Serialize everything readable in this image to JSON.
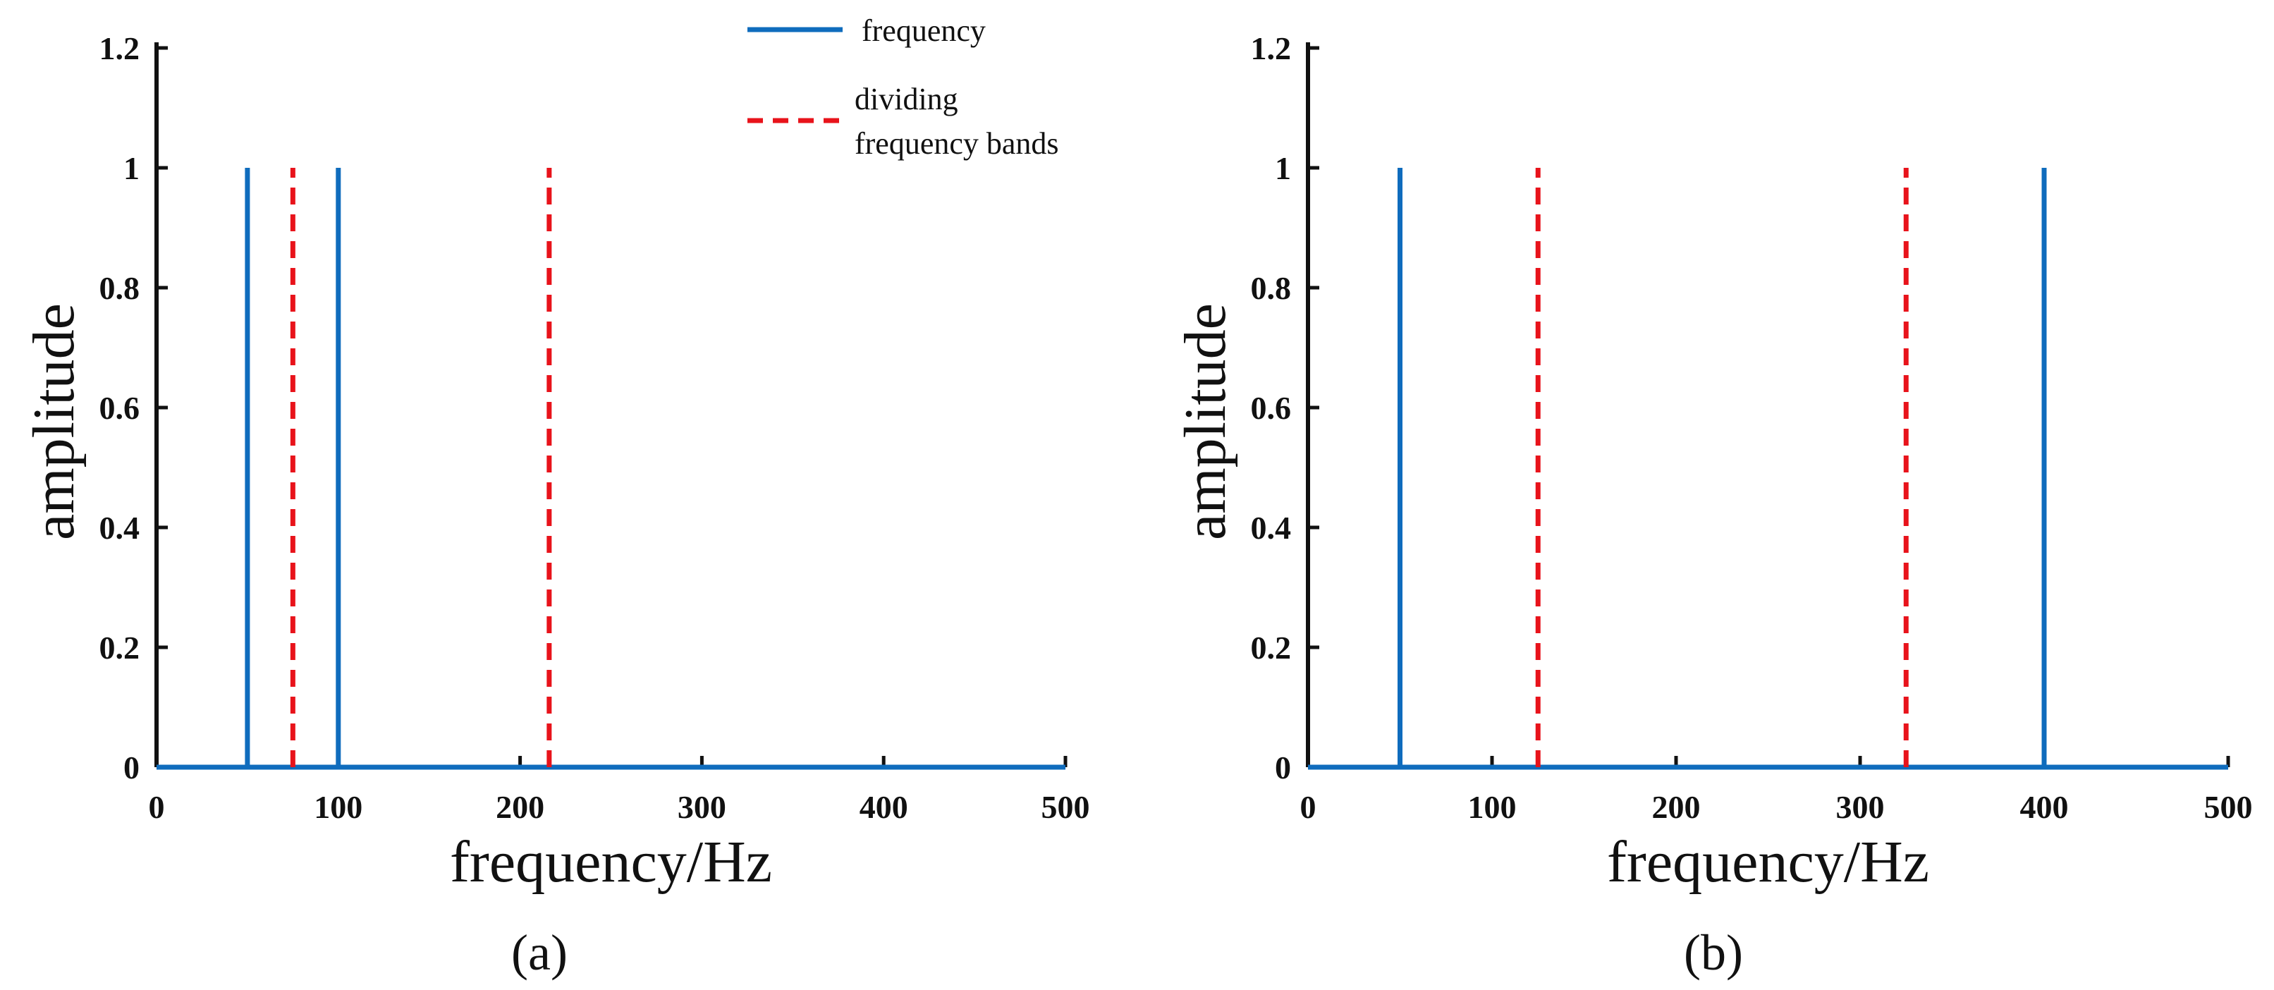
{
  "legend": {
    "frequency_label": "frequency",
    "dividing_label_line1": "dividing",
    "dividing_label_line2": "frequency bands"
  },
  "colors": {
    "frequency": "#0f6cbd",
    "dividing": "#e8131b",
    "axis": "#111111"
  },
  "chart_data": [
    {
      "type": "line",
      "panel_label": "(a)",
      "panel_letter": "a",
      "xlabel": "frequency/Hz",
      "ylabel": "amplitude",
      "xlim": [
        0,
        500
      ],
      "ylim": [
        0,
        1.2
      ],
      "xticks": [
        0,
        100,
        200,
        300,
        400,
        500
      ],
      "xtick_labels": [
        "0",
        "100",
        "200",
        "300",
        "400",
        "500"
      ],
      "yticks": [
        0,
        0.2,
        0.4,
        0.6,
        0.8,
        1,
        1.2
      ],
      "ytick_labels": [
        "0",
        "0.2",
        "0.4",
        "0.6",
        "0.8",
        "1",
        "1.2"
      ],
      "series": [
        {
          "name": "frequency",
          "style": "solid",
          "peaks": [
            {
              "x": 50,
              "y": 1
            },
            {
              "x": 100,
              "y": 1
            }
          ]
        },
        {
          "name": "dividing frequency bands",
          "style": "dashed",
          "lines": [
            {
              "x": 75,
              "y": 1
            },
            {
              "x": 216,
              "y": 1
            }
          ]
        }
      ]
    },
    {
      "type": "line",
      "panel_label": "(b)",
      "panel_letter": "b",
      "xlabel": "frequency/Hz",
      "ylabel": "amplitude",
      "xlim": [
        0,
        500
      ],
      "ylim": [
        0,
        1.2
      ],
      "xticks": [
        0,
        100,
        200,
        300,
        400,
        500
      ],
      "xtick_labels": [
        "0",
        "100",
        "200",
        "300",
        "400",
        "500"
      ],
      "yticks": [
        0,
        0.2,
        0.4,
        0.6,
        0.8,
        1,
        1.2
      ],
      "ytick_labels": [
        "0",
        "0.2",
        "0.4",
        "0.6",
        "0.8",
        "1",
        "1.2"
      ],
      "series": [
        {
          "name": "frequency",
          "style": "solid",
          "peaks": [
            {
              "x": 50,
              "y": 1
            },
            {
              "x": 400,
              "y": 1
            }
          ]
        },
        {
          "name": "dividing frequency bands",
          "style": "dashed",
          "lines": [
            {
              "x": 125,
              "y": 1
            },
            {
              "x": 325,
              "y": 1
            }
          ]
        }
      ]
    }
  ]
}
